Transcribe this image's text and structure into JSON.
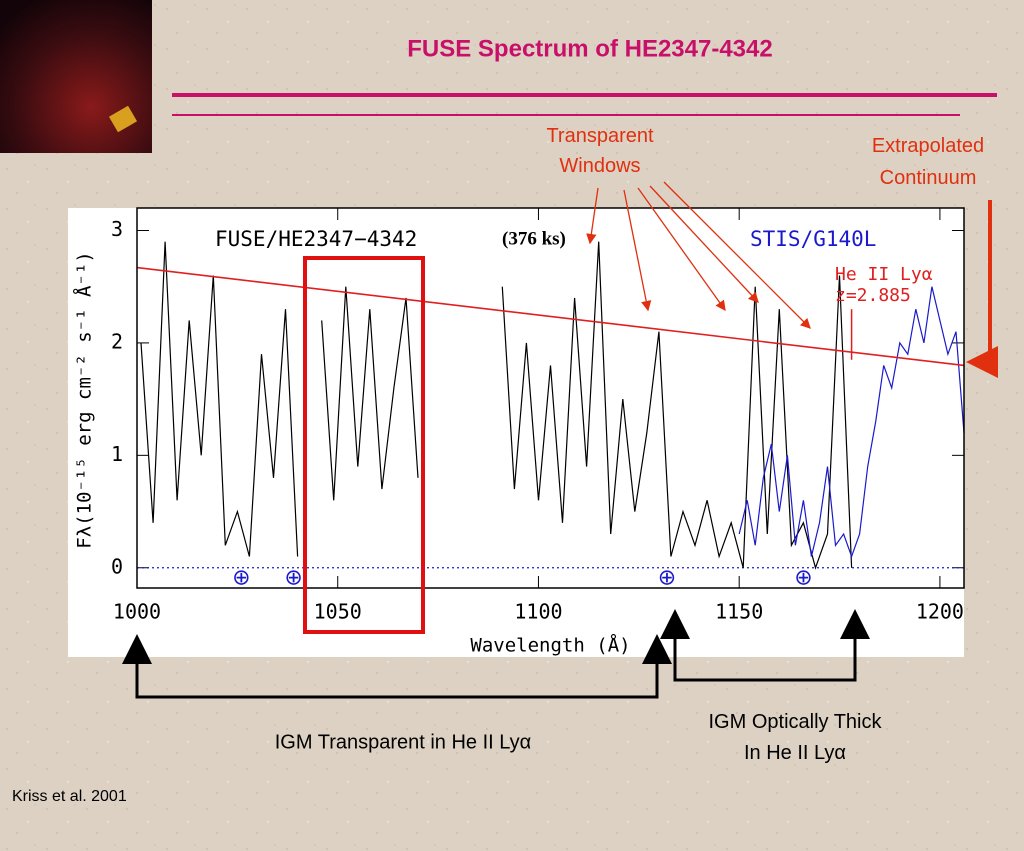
{
  "chart_data": {
    "type": "line",
    "title": "FUSE Spectrum of HE2347-4342",
    "xlabel": "Wavelength (Å)",
    "ylabel": "Fλ(10⁻¹⁵ erg cm⁻² s⁻¹ Å⁻¹)",
    "xlim": [
      1000,
      1206
    ],
    "ylim": [
      -0.18,
      3.2
    ],
    "xticks": [
      1000,
      1050,
      1100,
      1150,
      1200
    ],
    "yticks": [
      0,
      1,
      2,
      3
    ],
    "series": [
      {
        "name": "FUSE/HE2347−4342",
        "color": "#000000",
        "x": [
          1001,
          1004,
          1007,
          1010,
          1013,
          1016,
          1019,
          1022,
          1025,
          1028,
          1031,
          1034,
          1037,
          1040,
          1043,
          1046,
          1049,
          1052,
          1055,
          1058,
          1061,
          1064,
          1067,
          1070,
          1073,
          1076,
          1079,
          1082,
          1085,
          1088,
          1091,
          1094,
          1097,
          1100,
          1103,
          1106,
          1109,
          1112,
          1115,
          1118,
          1121,
          1124,
          1127,
          1130,
          1133,
          1136,
          1139,
          1142,
          1145,
          1148,
          1151,
          1154,
          1157,
          1160,
          1163,
          1166,
          1169,
          1172,
          1175,
          1178
        ],
        "values": [
          2.0,
          0.4,
          2.9,
          0.6,
          2.2,
          1.0,
          2.6,
          0.2,
          0.5,
          0.1,
          1.9,
          0.8,
          2.3,
          0.1,
          null,
          2.2,
          0.6,
          2.5,
          0.9,
          2.3,
          0.7,
          1.6,
          2.4,
          0.8,
          null,
          null,
          null,
          null,
          null,
          null,
          2.5,
          0.7,
          2.0,
          0.6,
          1.8,
          0.4,
          2.4,
          0.9,
          2.9,
          0.3,
          1.5,
          0.5,
          1.2,
          2.1,
          0.1,
          0.5,
          0.2,
          0.6,
          0.1,
          0.4,
          0.0,
          2.5,
          0.3,
          2.3,
          0.2,
          0.4,
          0.0,
          0.3,
          2.6,
          0.0
        ]
      },
      {
        "name": "STIS/G140L",
        "color": "#1a1acc",
        "x": [
          1150,
          1152,
          1154,
          1156,
          1158,
          1160,
          1162,
          1164,
          1166,
          1168,
          1170,
          1172,
          1174,
          1176,
          1178,
          1180,
          1182,
          1184,
          1186,
          1188,
          1190,
          1192,
          1194,
          1196,
          1198,
          1200,
          1202,
          1204,
          1206
        ],
        "values": [
          0.3,
          0.6,
          0.2,
          0.8,
          1.1,
          0.5,
          1.0,
          0.2,
          0.6,
          0.1,
          0.4,
          0.9,
          0.2,
          0.3,
          0.1,
          0.3,
          0.9,
          1.3,
          1.8,
          1.6,
          2.0,
          1.9,
          2.3,
          2.0,
          2.5,
          2.2,
          1.9,
          2.1,
          1.2
        ]
      },
      {
        "name": "Extrapolated Continuum",
        "color": "#e02020",
        "x": [
          1000,
          1206
        ],
        "values": [
          2.67,
          1.8
        ]
      }
    ],
    "exposure": "(376 ks)",
    "line_label": "He II Lyα",
    "redshift_label": "z=2.885",
    "line_marker": {
      "x": 1178,
      "values": [
        2.3,
        1.85
      ]
    },
    "zero_line": 0,
    "airglow_x": [
      1026,
      1039,
      1132,
      1166
    ],
    "airglow_symbol": "⊕",
    "annotations": [
      "Transparent Windows",
      "IGM Transparent in He II Lyα",
      "IGM Optically Thick In He II Lyα",
      "Kriss et al. 2001"
    ]
  }
}
